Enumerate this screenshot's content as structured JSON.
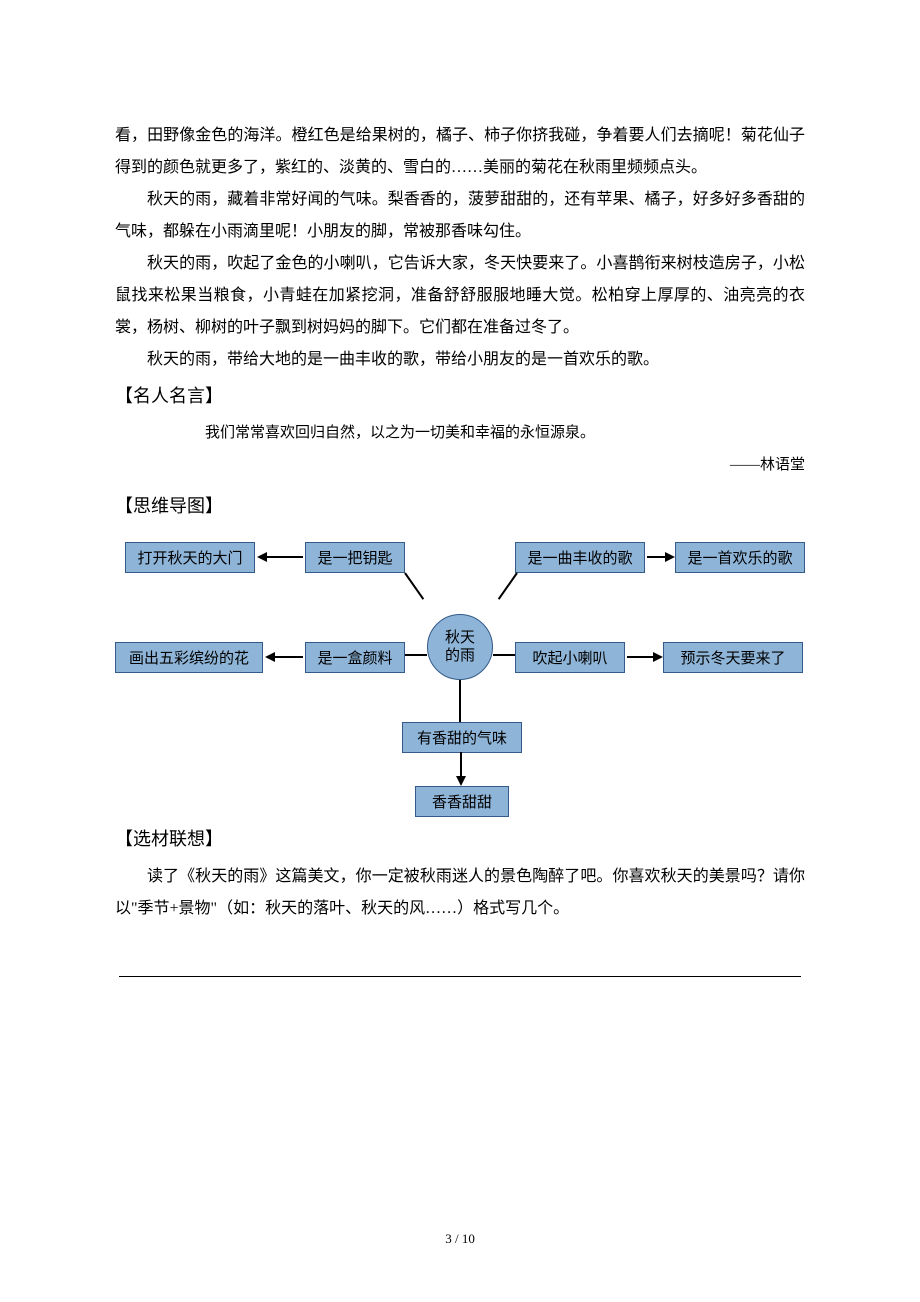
{
  "paragraphs": {
    "p1": "看，田野像金色的海洋。橙红色是给果树的，橘子、柿子你挤我碰，争着要人们去摘呢！菊花仙子得到的颜色就更多了，紫红的、淡黄的、雪白的……美丽的菊花在秋雨里频频点头。",
    "p2": "秋天的雨，藏着非常好闻的气味。梨香香的，菠萝甜甜的，还有苹果、橘子，好多好多香甜的气味，都躲在小雨滴里呢！小朋友的脚，常被那香味勾住。",
    "p3": "秋天的雨，吹起了金色的小喇叭，它告诉大家，冬天快要来了。小喜鹊衔来树枝造房子，小松鼠找来松果当粮食，小青蛙在加紧挖洞，准备舒舒服服地睡大觉。松柏穿上厚厚的、油亮亮的衣裳，杨树、柳树的叶子飘到树妈妈的脚下。它们都在准备过冬了。",
    "p4": "秋天的雨，带给大地的是一曲丰收的歌，带给小朋友的是一首欢乐的歌。"
  },
  "sections": {
    "quote_title": "【名人名言】",
    "mindmap_title": "【思维导图】",
    "material_title": "【选材联想】"
  },
  "quote": {
    "text": "我们常常喜欢回归自然，以之为一切美和幸福的永恒源泉。",
    "author": "——林语堂"
  },
  "mindmap": {
    "center": "秋天\n的雨",
    "nodes": {
      "key": "是一把钥匙",
      "key_out": "打开秋天的大门",
      "paint": "是一盒颜料",
      "paint_out": "画出五彩缤纷的花",
      "song": "是一曲丰收的歌",
      "song_out": "是一首欢乐的歌",
      "horn": "吹起小喇叭",
      "horn_out": "预示冬天要来了",
      "smell": "有香甜的气味",
      "smell_out": "香香甜甜"
    },
    "box_bg": "#8eb4d8",
    "box_border": "#335a88"
  },
  "material_prompt": "读了《秋天的雨》这篇美文，你一定被秋雨迷人的景色陶醉了吧。你喜欢秋天的美景吗？请你以\"季节+景物\"（如：秋天的落叶、秋天的风……）格式写几个。",
  "page": {
    "current": "3",
    "total": "10",
    "sep": " / "
  }
}
